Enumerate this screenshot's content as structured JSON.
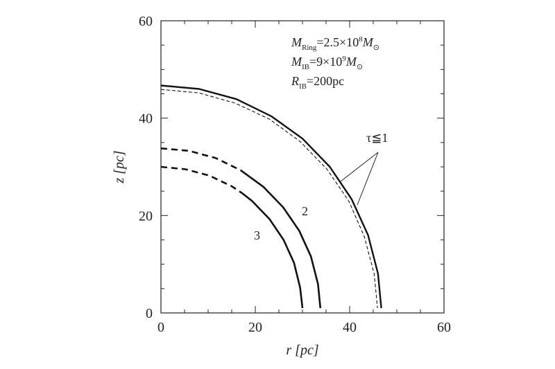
{
  "chart_data": {
    "type": "line",
    "xlabel": "r  [pc]",
    "ylabel": "z  [pc]",
    "annotations": [
      [
        "M",
        "Ring",
        "=2.5×10",
        "8",
        "M",
        "⊙"
      ],
      [
        "M",
        "IB",
        "=9×10",
        "9",
        "M",
        "⊙"
      ],
      [
        "R",
        "IB",
        "=200pc"
      ]
    ],
    "tau_label": "τ≦1",
    "curve_labels": [
      "2",
      "3"
    ],
    "xlim": [
      0,
      60
    ],
    "ylim": [
      0,
      60
    ],
    "xticks": [
      0,
      20,
      40,
      60
    ],
    "yticks": [
      0,
      20,
      40,
      60
    ],
    "xminorticks": [
      5,
      10,
      15,
      25,
      30,
      35,
      45,
      50,
      55
    ],
    "yminorticks": [
      5,
      10,
      15,
      25,
      30,
      35,
      45,
      50,
      55
    ],
    "series": [
      {
        "color": "#111111",
        "dashed": false,
        "width": 2.4,
        "x": [
          0,
          8.1,
          16.0,
          23.4,
          30.0,
          35.8,
          40.4,
          43.9,
          46.0,
          46.7
        ],
        "y": [
          46.7,
          46.0,
          43.9,
          40.4,
          35.8,
          30.0,
          23.4,
          16.0,
          8.1,
          1
        ]
      },
      {
        "color": "#111111",
        "dashed": true,
        "width": 1.1,
        "x": [
          0,
          8.0,
          15.7,
          23.0,
          29.5,
          35.2,
          39.8,
          43.1,
          45.2,
          45.9
        ],
        "y": [
          45.9,
          45.2,
          43.1,
          39.8,
          35.2,
          29.5,
          23.0,
          15.7,
          8.0,
          1
        ]
      },
      {
        "color": "#111111",
        "dashed": true,
        "width": 2.6,
        "x": [
          0,
          5.9,
          11.6,
          16.9
        ],
        "y": [
          33.8,
          33.3,
          31.8,
          29.3
        ]
      },
      {
        "color": "#111111",
        "dashed": false,
        "width": 2.6,
        "x": [
          16.9,
          21.7,
          25.9,
          29.3,
          31.8,
          33.3,
          33.8
        ],
        "y": [
          29.3,
          25.9,
          21.7,
          16.9,
          11.6,
          5.9,
          1
        ]
      },
      {
        "color": "#111111",
        "dashed": true,
        "width": 2.6,
        "x": [
          0,
          5.2,
          10.3,
          15.0,
          17.2
        ],
        "y": [
          30.0,
          29.5,
          28.2,
          26.0,
          24.6
        ]
      },
      {
        "color": "#111111",
        "dashed": false,
        "width": 2.6,
        "x": [
          17.2,
          19.3,
          23.0,
          26.0,
          28.2,
          29.5,
          30.0
        ],
        "y": [
          24.6,
          23.0,
          19.3,
          15.0,
          10.3,
          5.2,
          1
        ]
      }
    ]
  }
}
